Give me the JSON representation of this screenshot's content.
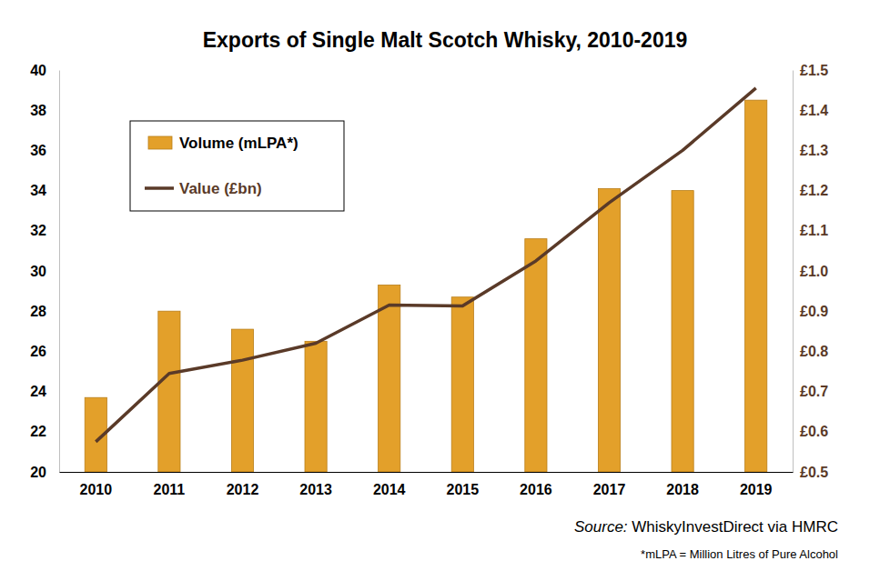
{
  "chart_data": {
    "type": "bar",
    "title": "Exports of Single Malt Scotch Whisky, 2010-2019",
    "categories": [
      "2010",
      "2011",
      "2012",
      "2013",
      "2014",
      "2015",
      "2016",
      "2017",
      "2018",
      "2019"
    ],
    "series": [
      {
        "name": "Volume (mLPA*)",
        "type": "bar",
        "color": "#E3A02A",
        "values": [
          23.7,
          28.0,
          27.1,
          26.5,
          29.3,
          28.7,
          31.6,
          34.1,
          34.0,
          38.5
        ]
      },
      {
        "name": "Value (£bn)",
        "type": "line",
        "axis": "y2",
        "color": "#5A3A28",
        "values": [
          0.575,
          0.745,
          0.778,
          0.82,
          0.915,
          0.913,
          1.025,
          1.17,
          1.3,
          1.455
        ]
      }
    ],
    "ylim": [
      20,
      40
    ],
    "yticks": [
      20,
      22,
      24,
      26,
      28,
      30,
      32,
      34,
      36,
      38,
      40
    ],
    "y2lim": [
      0.5,
      1.5
    ],
    "y2ticks": [
      {
        "value": 0.5,
        "label": "£0.5"
      },
      {
        "value": 0.6,
        "label": "£0.6"
      },
      {
        "value": 0.7,
        "label": "£0.7"
      },
      {
        "value": 0.8,
        "label": "£0.8"
      },
      {
        "value": 0.9,
        "label": "£0.9"
      },
      {
        "value": 1.0,
        "label": "£1.0"
      },
      {
        "value": 1.1,
        "label": "£1.1"
      },
      {
        "value": 1.2,
        "label": "£1.2"
      },
      {
        "value": 1.3,
        "label": "£1.3"
      },
      {
        "value": 1.4,
        "label": "£1.4"
      },
      {
        "value": 1.5,
        "label": "£1.5"
      }
    ],
    "grid": false,
    "legend": "upper left",
    "annotations": [
      "Source: WhiskyInvestDirect via HMRC",
      "*mLPA = Million Litres of Pure Alcohol"
    ]
  }
}
